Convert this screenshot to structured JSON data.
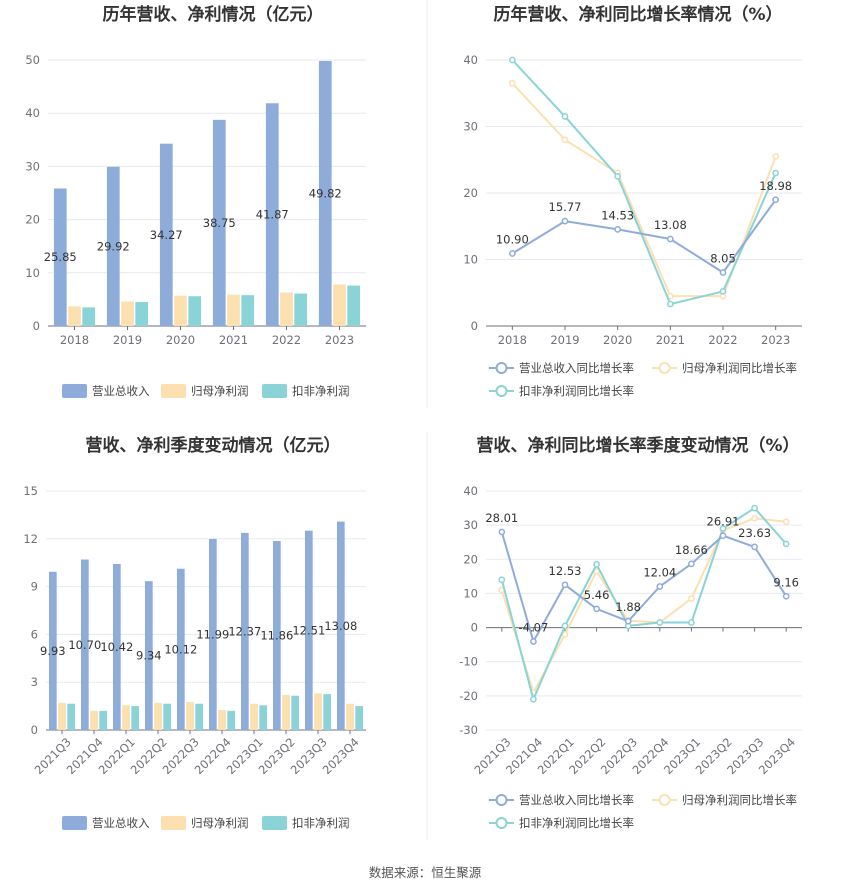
{
  "colors": {
    "revenue": "#8eacd9",
    "net_profit": "#fce0b0",
    "deducted_profit": "#8ad3d6",
    "rev_line": "#8eacd9",
    "net_line": "#fce0b0",
    "ded_line": "#8ad3d6"
  },
  "source_text": "数据来源：恒生聚源",
  "chart_data": [
    {
      "id": "annual_bar",
      "type": "bar",
      "title": "历年营收、净利情况（亿元）",
      "categories": [
        "2018",
        "2019",
        "2020",
        "2021",
        "2022",
        "2023"
      ],
      "ylim": [
        0,
        50
      ],
      "yticks": [
        "0",
        "10",
        "20",
        "30",
        "40",
        "50"
      ],
      "series": [
        {
          "name": "营业总收入",
          "values": [
            25.85,
            29.92,
            34.27,
            38.75,
            41.87,
            49.82
          ],
          "labels": [
            "25.85",
            "29.92",
            "34.27",
            "38.75",
            "41.87",
            "49.82"
          ]
        },
        {
          "name": "归母净利润",
          "values": [
            3.7,
            4.6,
            5.7,
            5.9,
            6.3,
            7.8
          ]
        },
        {
          "name": "扣非净利润",
          "values": [
            3.5,
            4.5,
            5.6,
            5.8,
            6.1,
            7.6
          ]
        }
      ]
    },
    {
      "id": "annual_line",
      "type": "line",
      "title": "历年营收、净利同比增长率情况（%）",
      "categories": [
        "2018",
        "2019",
        "2020",
        "2021",
        "2022",
        "2023"
      ],
      "ylim": [
        0,
        40
      ],
      "yticks": [
        "0",
        "10",
        "20",
        "30",
        "40"
      ],
      "series": [
        {
          "name": "营业总收入同比增长率",
          "values": [
            10.9,
            15.77,
            14.53,
            13.08,
            8.05,
            18.98
          ],
          "labels": [
            "10.90",
            "15.77",
            "14.53",
            "13.08",
            "8.05",
            "18.98"
          ]
        },
        {
          "name": "归母净利润同比增长率",
          "values": [
            36.5,
            28.0,
            23.0,
            4.5,
            4.5,
            25.5
          ]
        },
        {
          "name": "扣非净利润同比增长率",
          "values": [
            40.0,
            31.5,
            22.5,
            3.3,
            5.2,
            23.0
          ]
        }
      ]
    },
    {
      "id": "quarter_bar",
      "type": "bar",
      "title": "营收、净利季度变动情况（亿元）",
      "categories": [
        "2021Q3",
        "2021Q4",
        "2022Q1",
        "2022Q2",
        "2022Q3",
        "2022Q4",
        "2023Q1",
        "2023Q2",
        "2023Q3",
        "2023Q4"
      ],
      "ylim": [
        0,
        15
      ],
      "yticks": [
        "0",
        "3",
        "6",
        "9",
        "12",
        "15"
      ],
      "series": [
        {
          "name": "营业总收入",
          "values": [
            9.93,
            10.7,
            10.42,
            9.34,
            10.12,
            11.99,
            12.37,
            11.86,
            12.51,
            13.08
          ],
          "labels": [
            "9.93",
            "10.70",
            "10.42",
            "9.34",
            "10.12",
            "11.99",
            "12.37",
            "11.86",
            "12.51",
            "13.08"
          ]
        },
        {
          "name": "归母净利润",
          "values": [
            1.7,
            1.2,
            1.55,
            1.7,
            1.75,
            1.25,
            1.65,
            2.2,
            2.3,
            1.65
          ]
        },
        {
          "name": "扣非净利润",
          "values": [
            1.65,
            1.2,
            1.5,
            1.65,
            1.65,
            1.2,
            1.55,
            2.15,
            2.25,
            1.5
          ]
        }
      ]
    },
    {
      "id": "quarter_line",
      "type": "line",
      "title": "营收、净利同比增长率季度变动情况（%）",
      "categories": [
        "2021Q3",
        "2021Q4",
        "2022Q1",
        "2022Q2",
        "2022Q3",
        "2022Q4",
        "2023Q1",
        "2023Q2",
        "2023Q3",
        "2023Q4"
      ],
      "ylim": [
        -30,
        40
      ],
      "yticks": [
        "-30",
        "-20",
        "-10",
        "0",
        "10",
        "20",
        "30",
        "40"
      ],
      "series": [
        {
          "name": "营业总收入同比增长率",
          "values": [
            28.01,
            -4.07,
            12.53,
            5.46,
            1.88,
            12.04,
            18.66,
            26.91,
            23.63,
            9.16
          ],
          "labels": [
            "28.01",
            "-4.07",
            "12.53",
            "5.46",
            "1.88",
            "12.04",
            "18.66",
            "26.91",
            "23.63",
            "9.16"
          ]
        },
        {
          "name": "归母净利润同比增长率",
          "values": [
            11.0,
            -19.0,
            -2.0,
            16.5,
            2.0,
            1.5,
            8.5,
            28.5,
            32.0,
            31.0
          ]
        },
        {
          "name": "扣非净利润同比增长率",
          "values": [
            14.0,
            -21.0,
            0.5,
            18.5,
            0.5,
            1.5,
            1.5,
            29.0,
            35.0,
            24.5
          ]
        }
      ]
    }
  ]
}
